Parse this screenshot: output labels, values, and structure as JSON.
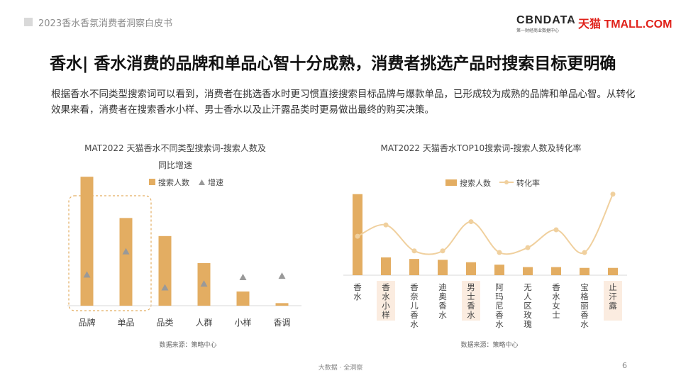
{
  "header": {
    "report_title": "2023香水香氛消费者洞察白皮书",
    "logo_cbn": "CBNDATA",
    "logo_cbn_sub": "第一财经商业数据中心",
    "logo_x": "×",
    "logo_tmall": "天猫 TMALL.COM"
  },
  "headline": "香水| 香水消费的品牌和单品心智十分成熟，消费者挑选产品时搜索目标更明确",
  "intro": "根据香水不同类型搜索词可以看到，消费者在挑选香水时更习惯直接搜索目标品牌与爆款单品，已形成较为成熟的品牌和单品心智。从转化效果来看，消费者在搜索香水小样、男士香水以及止汗露品类时更易做出最终的购买决策。",
  "footer": {
    "text": "大数据 · 全洞察",
    "page": "6"
  },
  "colors": {
    "bar": "#e3ad62",
    "triangle": "#999999",
    "line": "#f0d09e",
    "highlight_bg": "#fbece0",
    "dashed_box": "#e3ad62"
  },
  "chart_data": [
    {
      "type": "bar",
      "title_line1": "MAT2022 天猫香水不同类型搜索词-搜索人数及",
      "title_line2": "同比增速",
      "legend": [
        "搜索人数",
        "增速"
      ],
      "legend_position": "top",
      "categories": [
        "品牌",
        "单品",
        "品类",
        "人群",
        "小样",
        "香调"
      ],
      "series": [
        {
          "name": "搜索人数",
          "type": "bar",
          "values": [
            100,
            68,
            54,
            33,
            11,
            2
          ]
        },
        {
          "name": "增速",
          "type": "marker",
          "marker": "triangle",
          "values": [
            24,
            42,
            14,
            17,
            22,
            23
          ]
        }
      ],
      "ylim": [
        0,
        110
      ],
      "highlighted_categories": [
        "品牌",
        "单品"
      ],
      "source": "数据来源：策略中心"
    },
    {
      "type": "bar",
      "title": "MAT2022 天猫香水TOP10搜索词-搜索人数及转化率",
      "legend": [
        "搜索人数",
        "转化率"
      ],
      "legend_position": "top",
      "categories": [
        "香水",
        "香水小样",
        "香奈儿香水",
        "迪奥香水",
        "男士香水",
        "阿玛尼香水",
        "无人区玫瑰",
        "香水女士",
        "宝格丽香水",
        "止汗露"
      ],
      "series": [
        {
          "name": "搜索人数",
          "type": "bar",
          "values": [
            100,
            22,
            20,
            19,
            16,
            13,
            10,
            10,
            9,
            9
          ]
        },
        {
          "name": "转化率",
          "type": "line",
          "values": [
            48,
            62,
            30,
            30,
            66,
            28,
            34,
            56,
            28,
            100
          ]
        }
      ],
      "ylim": [
        0,
        105
      ],
      "highlighted_categories": [
        "香水小样",
        "男士香水",
        "止汗露"
      ],
      "source": "数据来源：策略中心"
    }
  ]
}
